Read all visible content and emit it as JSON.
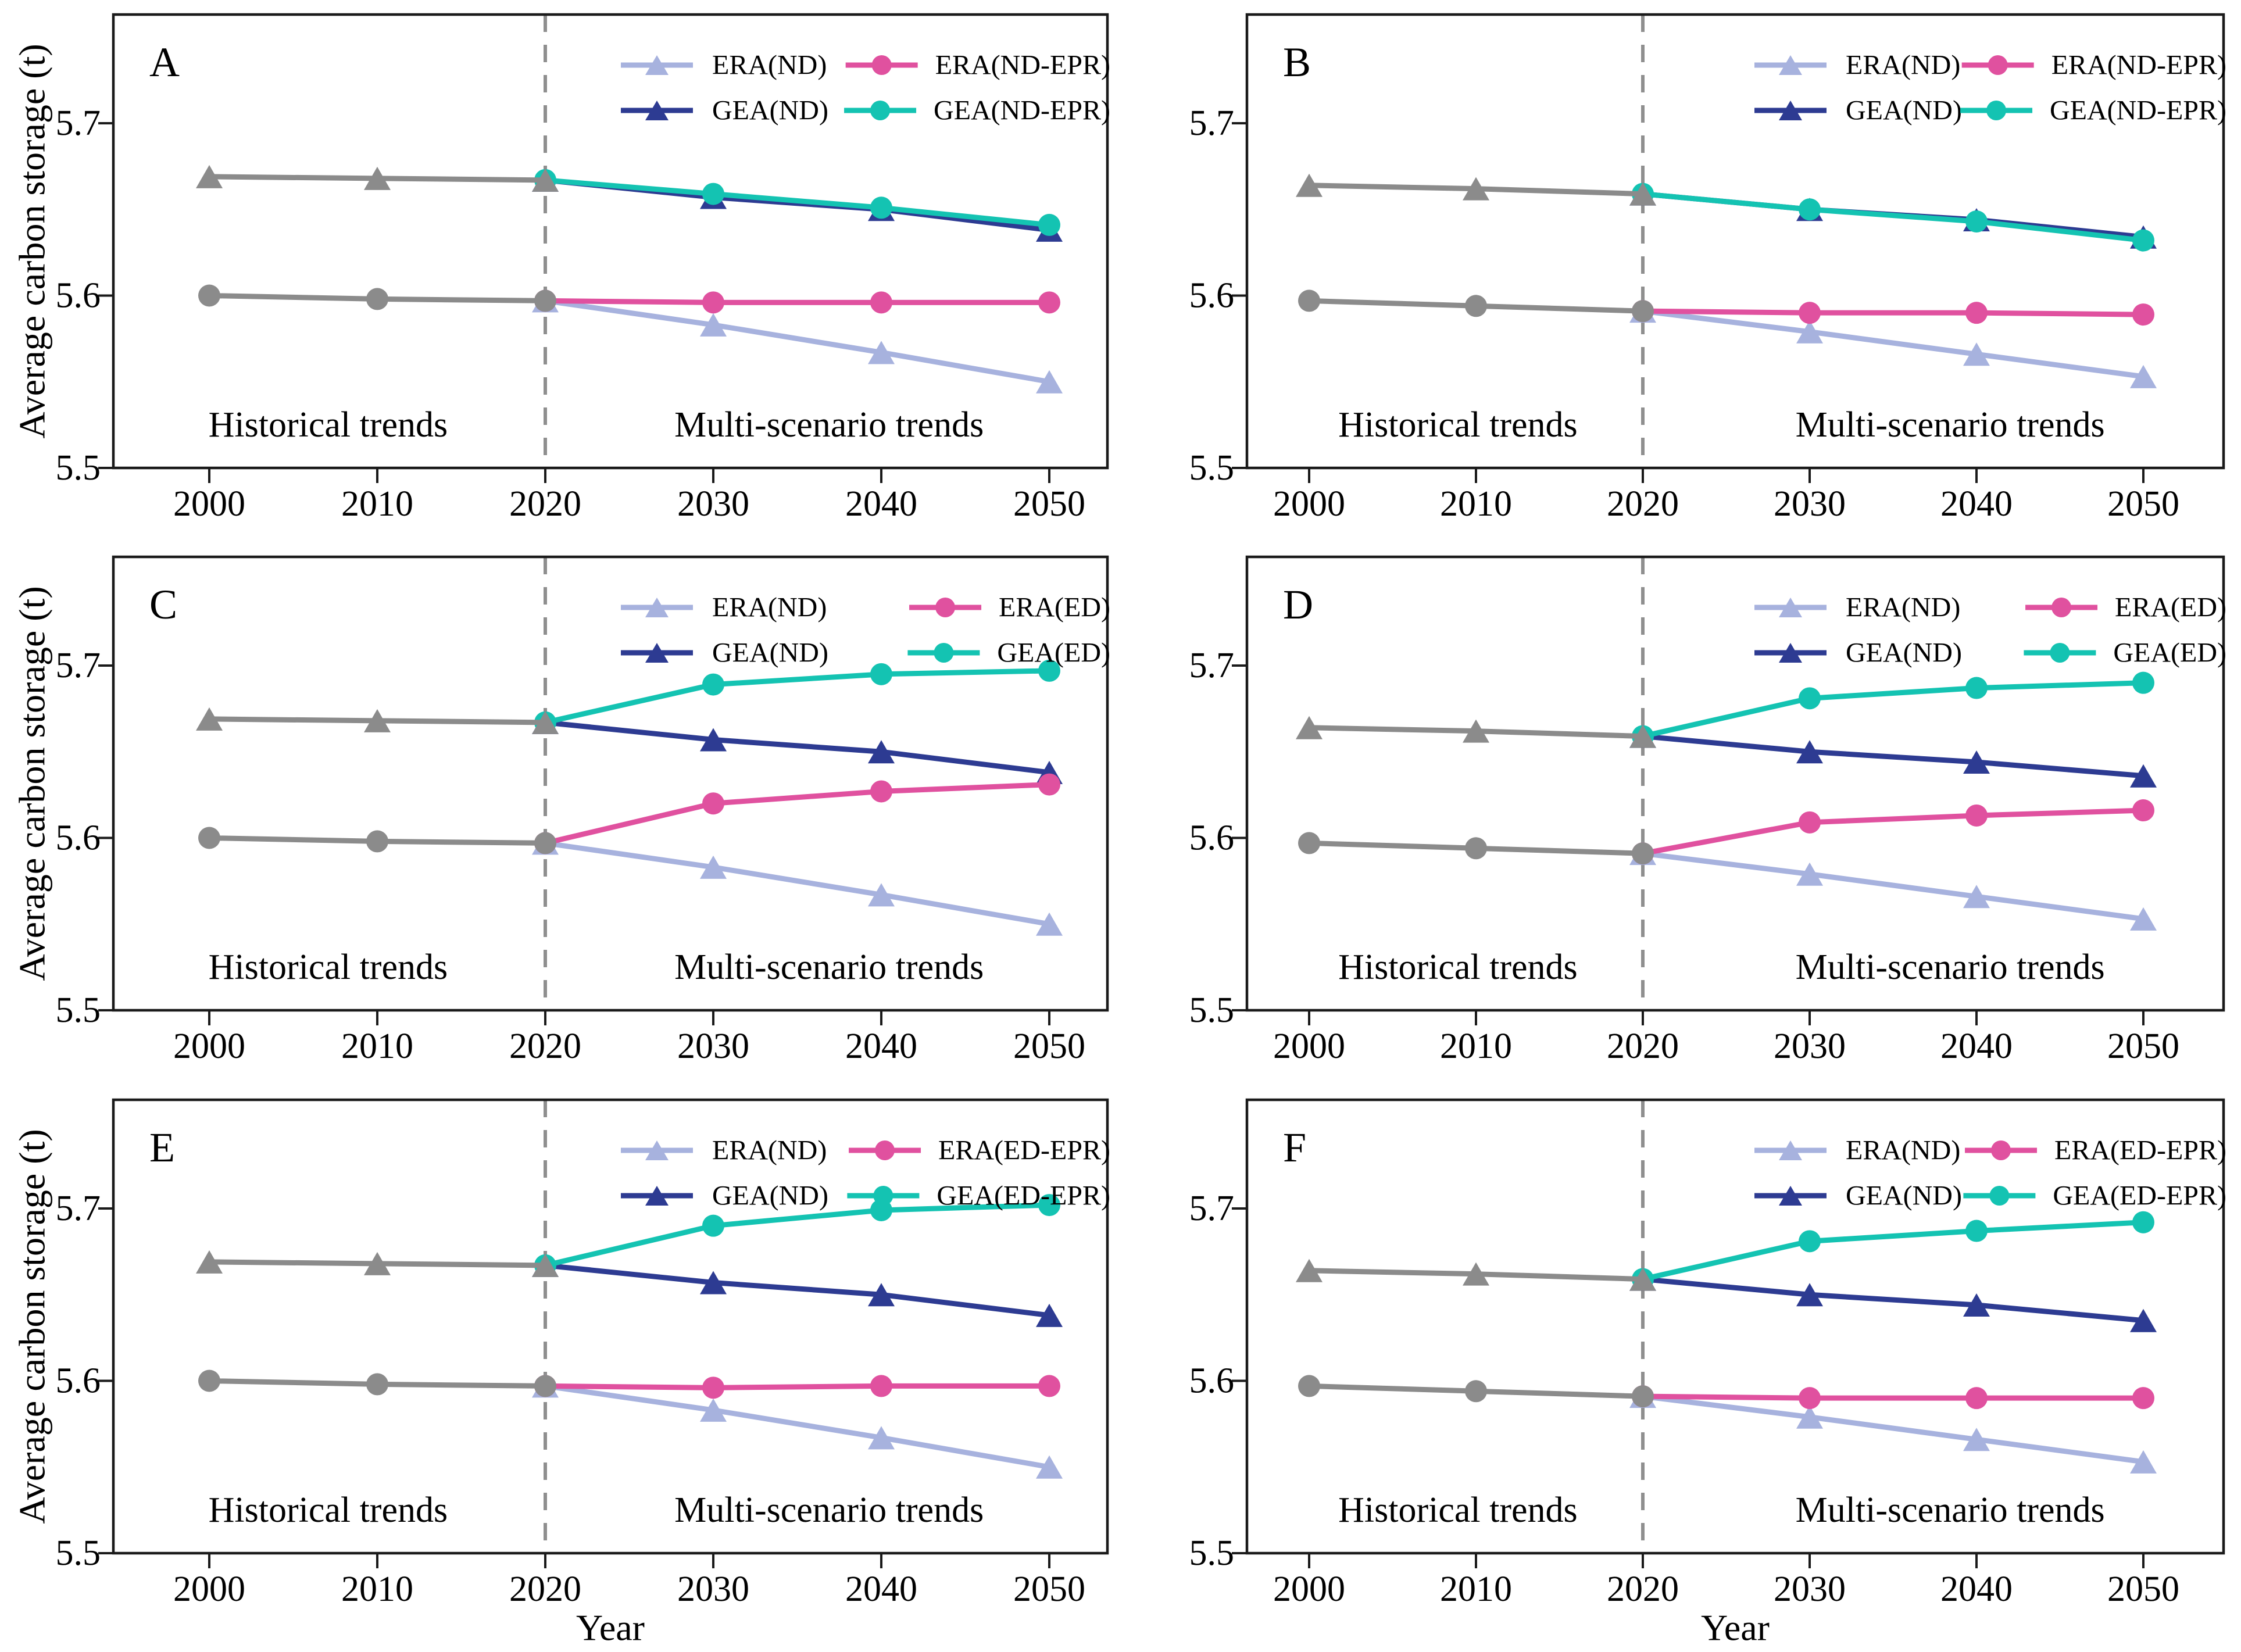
{
  "figure": {
    "background": "#ffffff",
    "ylabel": "Average carbon storage (t)",
    "xlabel": "Year",
    "annotation_historical": "Historical trends",
    "annotation_scenario": "Multi-scenario trends"
  },
  "colors": {
    "era_nd": "#a7b2de",
    "gea_nd": "#2d3b92",
    "era_scenario": "#e0519f",
    "gea_scenario": "#14c3b2",
    "historical": "#8b8b8b",
    "divider": "#8f8f8f",
    "spine": "#1a1a1a",
    "text": "#000000"
  },
  "chart_data": [
    {
      "id": "A",
      "type": "line",
      "row": 0,
      "col": 0,
      "show_ylabel": true,
      "show_xlabel": false,
      "xticks": [
        2000,
        2010,
        2020,
        2030,
        2040,
        2050
      ],
      "yticks": [
        5.5,
        5.6,
        5.7
      ],
      "ylim": [
        5.5,
        5.763
      ],
      "xlim": [
        1994.3,
        2053.5
      ],
      "grid": false,
      "legend_position": "top-right",
      "divider_year": 2020,
      "annotations": [
        {
          "key": "annotation_historical",
          "fx": 0.216,
          "fy": 0.905
        },
        {
          "key": "annotation_scenario",
          "fx": 0.72,
          "fy": 0.905
        }
      ],
      "legend": [
        {
          "label": "ERA(ND)",
          "series": "era_nd",
          "marker": "triangle"
        },
        {
          "label": "GEA(ND)",
          "series": "gea_nd",
          "marker": "triangle"
        },
        {
          "label": "ERA(ND-EPR)",
          "series": "era_scenario",
          "marker": "circle"
        },
        {
          "label": "GEA(ND-EPR)",
          "series": "gea_scenario",
          "marker": "circle"
        }
      ],
      "series": [
        {
          "name": "ERA(ND)",
          "color_key": "era_nd",
          "marker": "triangle",
          "x": [
            2020,
            2030,
            2040,
            2050
          ],
          "y": [
            5.597,
            5.583,
            5.567,
            5.55
          ]
        },
        {
          "name": "GEA(ND)",
          "color_key": "gea_nd",
          "marker": "triangle",
          "x": [
            2020,
            2030,
            2040,
            2050
          ],
          "y": [
            5.667,
            5.657,
            5.65,
            5.638
          ]
        },
        {
          "name": "ERA(ND-EPR)",
          "color_key": "era_scenario",
          "marker": "circle",
          "x": [
            2020,
            2030,
            2040,
            2050
          ],
          "y": [
            5.597,
            5.596,
            5.596,
            5.596
          ]
        },
        {
          "name": "GEA(ND-EPR)",
          "color_key": "gea_scenario",
          "marker": "circle",
          "x": [
            2020,
            2030,
            2040,
            2050
          ],
          "y": [
            5.667,
            5.659,
            5.651,
            5.641
          ]
        },
        {
          "name": "historical-triangle",
          "color_key": "historical",
          "marker": "triangle",
          "x": [
            2000,
            2010,
            2020
          ],
          "y": [
            5.669,
            5.668,
            5.667
          ]
        },
        {
          "name": "historical-circle",
          "color_key": "historical",
          "marker": "circle",
          "x": [
            2000,
            2010,
            2020
          ],
          "y": [
            5.6,
            5.598,
            5.597
          ]
        }
      ]
    },
    {
      "id": "B",
      "type": "line",
      "row": 0,
      "col": 1,
      "show_ylabel": false,
      "show_xlabel": false,
      "xticks": [
        2000,
        2010,
        2020,
        2030,
        2040,
        2050
      ],
      "yticks": [
        5.5,
        5.6,
        5.7
      ],
      "ylim": [
        5.5,
        5.763
      ],
      "xlim": [
        1994.3,
        2053.5
      ],
      "grid": false,
      "legend_position": "top-right",
      "divider_year": 2020,
      "annotations": [
        {
          "key": "annotation_historical",
          "fx": 0.216,
          "fy": 0.905
        },
        {
          "key": "annotation_scenario",
          "fx": 0.72,
          "fy": 0.905
        }
      ],
      "legend": [
        {
          "label": "ERA(ND)",
          "series": "era_nd",
          "marker": "triangle"
        },
        {
          "label": "GEA(ND)",
          "series": "gea_nd",
          "marker": "triangle"
        },
        {
          "label": "ERA(ND-EPR)",
          "series": "era_scenario",
          "marker": "circle"
        },
        {
          "label": "GEA(ND-EPR)",
          "series": "gea_scenario",
          "marker": "circle"
        }
      ],
      "series": [
        {
          "name": "ERA(ND)",
          "color_key": "era_nd",
          "marker": "triangle",
          "x": [
            2020,
            2030,
            2040,
            2050
          ],
          "y": [
            5.591,
            5.579,
            5.566,
            5.553
          ]
        },
        {
          "name": "GEA(ND)",
          "color_key": "gea_nd",
          "marker": "triangle",
          "x": [
            2020,
            2030,
            2040,
            2050
          ],
          "y": [
            5.659,
            5.65,
            5.644,
            5.634
          ]
        },
        {
          "name": "ERA(ND-EPR)",
          "color_key": "era_scenario",
          "marker": "circle",
          "x": [
            2020,
            2030,
            2040,
            2050
          ],
          "y": [
            5.591,
            5.59,
            5.59,
            5.589
          ]
        },
        {
          "name": "GEA(ND-EPR)",
          "color_key": "gea_scenario",
          "marker": "circle",
          "x": [
            2020,
            2030,
            2040,
            2050
          ],
          "y": [
            5.659,
            5.65,
            5.643,
            5.632
          ]
        },
        {
          "name": "historical-triangle",
          "color_key": "historical",
          "marker": "triangle",
          "x": [
            2000,
            2010,
            2020
          ],
          "y": [
            5.664,
            5.662,
            5.659
          ]
        },
        {
          "name": "historical-circle",
          "color_key": "historical",
          "marker": "circle",
          "x": [
            2000,
            2010,
            2020
          ],
          "y": [
            5.597,
            5.594,
            5.591
          ]
        }
      ]
    },
    {
      "id": "C",
      "type": "line",
      "row": 1,
      "col": 0,
      "show_ylabel": true,
      "show_xlabel": false,
      "xticks": [
        2000,
        2010,
        2020,
        2030,
        2040,
        2050
      ],
      "yticks": [
        5.5,
        5.6,
        5.7
      ],
      "ylim": [
        5.5,
        5.763
      ],
      "xlim": [
        1994.3,
        2053.5
      ],
      "grid": false,
      "legend_position": "top-right",
      "divider_year": 2020,
      "annotations": [
        {
          "key": "annotation_historical",
          "fx": 0.216,
          "fy": 0.905
        },
        {
          "key": "annotation_scenario",
          "fx": 0.72,
          "fy": 0.905
        }
      ],
      "legend": [
        {
          "label": "ERA(ND)",
          "series": "era_nd",
          "marker": "triangle"
        },
        {
          "label": "GEA(ND)",
          "series": "gea_nd",
          "marker": "triangle"
        },
        {
          "label": "ERA(ED)",
          "series": "era_scenario",
          "marker": "circle"
        },
        {
          "label": "GEA(ED)",
          "series": "gea_scenario",
          "marker": "circle"
        }
      ],
      "series": [
        {
          "name": "ERA(ND)",
          "color_key": "era_nd",
          "marker": "triangle",
          "x": [
            2020,
            2030,
            2040,
            2050
          ],
          "y": [
            5.597,
            5.583,
            5.567,
            5.55
          ]
        },
        {
          "name": "GEA(ND)",
          "color_key": "gea_nd",
          "marker": "triangle",
          "x": [
            2020,
            2030,
            2040,
            2050
          ],
          "y": [
            5.667,
            5.657,
            5.65,
            5.638
          ]
        },
        {
          "name": "ERA(ED)",
          "color_key": "era_scenario",
          "marker": "circle",
          "x": [
            2020,
            2030,
            2040,
            2050
          ],
          "y": [
            5.597,
            5.62,
            5.627,
            5.631
          ]
        },
        {
          "name": "GEA(ED)",
          "color_key": "gea_scenario",
          "marker": "circle",
          "x": [
            2020,
            2030,
            2040,
            2050
          ],
          "y": [
            5.667,
            5.689,
            5.695,
            5.697
          ]
        },
        {
          "name": "historical-triangle",
          "color_key": "historical",
          "marker": "triangle",
          "x": [
            2000,
            2010,
            2020
          ],
          "y": [
            5.669,
            5.668,
            5.667
          ]
        },
        {
          "name": "historical-circle",
          "color_key": "historical",
          "marker": "circle",
          "x": [
            2000,
            2010,
            2020
          ],
          "y": [
            5.6,
            5.598,
            5.597
          ]
        }
      ]
    },
    {
      "id": "D",
      "type": "line",
      "row": 1,
      "col": 1,
      "show_ylabel": false,
      "show_xlabel": false,
      "xticks": [
        2000,
        2010,
        2020,
        2030,
        2040,
        2050
      ],
      "yticks": [
        5.5,
        5.6,
        5.7
      ],
      "ylim": [
        5.5,
        5.763
      ],
      "xlim": [
        1994.3,
        2053.5
      ],
      "grid": false,
      "legend_position": "top-right",
      "divider_year": 2020,
      "annotations": [
        {
          "key": "annotation_historical",
          "fx": 0.216,
          "fy": 0.905
        },
        {
          "key": "annotation_scenario",
          "fx": 0.72,
          "fy": 0.905
        }
      ],
      "legend": [
        {
          "label": "ERA(ND)",
          "series": "era_nd",
          "marker": "triangle"
        },
        {
          "label": "GEA(ND)",
          "series": "gea_nd",
          "marker": "triangle"
        },
        {
          "label": "ERA(ED)",
          "series": "era_scenario",
          "marker": "circle"
        },
        {
          "label": "GEA(ED)",
          "series": "gea_scenario",
          "marker": "circle"
        }
      ],
      "series": [
        {
          "name": "ERA(ND)",
          "color_key": "era_nd",
          "marker": "triangle",
          "x": [
            2020,
            2030,
            2040,
            2050
          ],
          "y": [
            5.591,
            5.579,
            5.566,
            5.553
          ]
        },
        {
          "name": "GEA(ND)",
          "color_key": "gea_nd",
          "marker": "triangle",
          "x": [
            2020,
            2030,
            2040,
            2050
          ],
          "y": [
            5.659,
            5.65,
            5.644,
            5.636
          ]
        },
        {
          "name": "ERA(ED)",
          "color_key": "era_scenario",
          "marker": "circle",
          "x": [
            2020,
            2030,
            2040,
            2050
          ],
          "y": [
            5.591,
            5.609,
            5.613,
            5.616
          ]
        },
        {
          "name": "GEA(ED)",
          "color_key": "gea_scenario",
          "marker": "circle",
          "x": [
            2020,
            2030,
            2040,
            2050
          ],
          "y": [
            5.659,
            5.681,
            5.687,
            5.69
          ]
        },
        {
          "name": "historical-triangle",
          "color_key": "historical",
          "marker": "triangle",
          "x": [
            2000,
            2010,
            2020
          ],
          "y": [
            5.664,
            5.662,
            5.659
          ]
        },
        {
          "name": "historical-circle",
          "color_key": "historical",
          "marker": "circle",
          "x": [
            2000,
            2010,
            2020
          ],
          "y": [
            5.597,
            5.594,
            5.591
          ]
        }
      ]
    },
    {
      "id": "E",
      "type": "line",
      "row": 2,
      "col": 0,
      "show_ylabel": true,
      "show_xlabel": true,
      "xticks": [
        2000,
        2010,
        2020,
        2030,
        2040,
        2050
      ],
      "yticks": [
        5.5,
        5.6,
        5.7
      ],
      "ylim": [
        5.5,
        5.763
      ],
      "xlim": [
        1994.3,
        2053.5
      ],
      "grid": false,
      "legend_position": "top-right",
      "divider_year": 2020,
      "annotations": [
        {
          "key": "annotation_historical",
          "fx": 0.216,
          "fy": 0.905
        },
        {
          "key": "annotation_scenario",
          "fx": 0.72,
          "fy": 0.905
        }
      ],
      "legend": [
        {
          "label": "ERA(ND)",
          "series": "era_nd",
          "marker": "triangle"
        },
        {
          "label": "GEA(ND)",
          "series": "gea_nd",
          "marker": "triangle"
        },
        {
          "label": "ERA(ED-EPR)",
          "series": "era_scenario",
          "marker": "circle"
        },
        {
          "label": "GEA(ED-EPR)",
          "series": "gea_scenario",
          "marker": "circle"
        }
      ],
      "series": [
        {
          "name": "ERA(ND)",
          "color_key": "era_nd",
          "marker": "triangle",
          "x": [
            2020,
            2030,
            2040,
            2050
          ],
          "y": [
            5.597,
            5.583,
            5.567,
            5.55
          ]
        },
        {
          "name": "GEA(ND)",
          "color_key": "gea_nd",
          "marker": "triangle",
          "x": [
            2020,
            2030,
            2040,
            2050
          ],
          "y": [
            5.667,
            5.657,
            5.65,
            5.638
          ]
        },
        {
          "name": "ERA(ED-EPR)",
          "color_key": "era_scenario",
          "marker": "circle",
          "x": [
            2020,
            2030,
            2040,
            2050
          ],
          "y": [
            5.597,
            5.596,
            5.597,
            5.597
          ]
        },
        {
          "name": "GEA(ED-EPR)",
          "color_key": "gea_scenario",
          "marker": "circle",
          "x": [
            2020,
            2030,
            2040,
            2050
          ],
          "y": [
            5.667,
            5.69,
            5.699,
            5.702
          ]
        },
        {
          "name": "historical-triangle",
          "color_key": "historical",
          "marker": "triangle",
          "x": [
            2000,
            2010,
            2020
          ],
          "y": [
            5.669,
            5.668,
            5.667
          ]
        },
        {
          "name": "historical-circle",
          "color_key": "historical",
          "marker": "circle",
          "x": [
            2000,
            2010,
            2020
          ],
          "y": [
            5.6,
            5.598,
            5.597
          ]
        }
      ]
    },
    {
      "id": "F",
      "type": "line",
      "row": 2,
      "col": 1,
      "show_ylabel": false,
      "show_xlabel": true,
      "xticks": [
        2000,
        2010,
        2020,
        2030,
        2040,
        2050
      ],
      "yticks": [
        5.5,
        5.6,
        5.7
      ],
      "ylim": [
        5.5,
        5.763
      ],
      "xlim": [
        1994.3,
        2053.5
      ],
      "grid": false,
      "legend_position": "top-right",
      "divider_year": 2020,
      "annotations": [
        {
          "key": "annotation_historical",
          "fx": 0.216,
          "fy": 0.905
        },
        {
          "key": "annotation_scenario",
          "fx": 0.72,
          "fy": 0.905
        }
      ],
      "legend": [
        {
          "label": "ERA(ND)",
          "series": "era_nd",
          "marker": "triangle"
        },
        {
          "label": "GEA(ND)",
          "series": "gea_nd",
          "marker": "triangle"
        },
        {
          "label": "ERA(ED-EPR)",
          "series": "era_scenario",
          "marker": "circle"
        },
        {
          "label": "GEA(ED-EPR)",
          "series": "gea_scenario",
          "marker": "circle"
        }
      ],
      "series": [
        {
          "name": "ERA(ND)",
          "color_key": "era_nd",
          "marker": "triangle",
          "x": [
            2020,
            2030,
            2040,
            2050
          ],
          "y": [
            5.591,
            5.579,
            5.566,
            5.553
          ]
        },
        {
          "name": "GEA(ND)",
          "color_key": "gea_nd",
          "marker": "triangle",
          "x": [
            2020,
            2030,
            2040,
            2050
          ],
          "y": [
            5.659,
            5.65,
            5.644,
            5.635
          ]
        },
        {
          "name": "ERA(ED-EPR)",
          "color_key": "era_scenario",
          "marker": "circle",
          "x": [
            2020,
            2030,
            2040,
            2050
          ],
          "y": [
            5.591,
            5.59,
            5.59,
            5.59
          ]
        },
        {
          "name": "GEA(ED-EPR)",
          "color_key": "gea_scenario",
          "marker": "circle",
          "x": [
            2020,
            2030,
            2040,
            2050
          ],
          "y": [
            5.659,
            5.681,
            5.687,
            5.692
          ]
        },
        {
          "name": "historical-triangle",
          "color_key": "historical",
          "marker": "triangle",
          "x": [
            2000,
            2010,
            2020
          ],
          "y": [
            5.664,
            5.662,
            5.659
          ]
        },
        {
          "name": "historical-circle",
          "color_key": "historical",
          "marker": "circle",
          "x": [
            2000,
            2010,
            2020
          ],
          "y": [
            5.597,
            5.594,
            5.591
          ]
        }
      ]
    }
  ]
}
